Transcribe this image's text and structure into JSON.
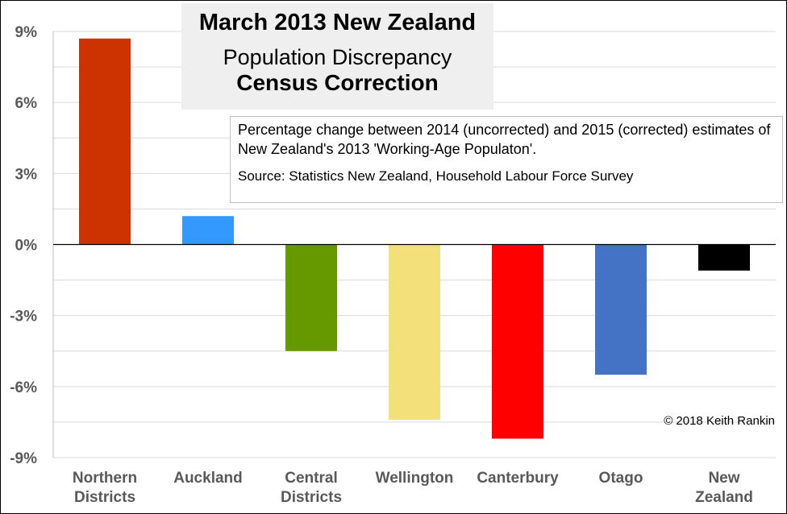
{
  "title": {
    "main": "March 2013 New Zealand",
    "line2": "Population Discrepancy",
    "line3": "Census Correction"
  },
  "note": {
    "text": "Percentage change between 2014 (uncorrected) and 2015 (corrected) estimates of New Zealand's 2013 'Working-Age Populaton'.",
    "source": "Source: Statistics New Zealand, Household Labour Force Survey"
  },
  "copyright": "© 2018 Keith Rankin",
  "chart_data": {
    "type": "bar",
    "categories": [
      "Northern Districts",
      "Auckland",
      "Central Districts",
      "Wellington",
      "Canterbury",
      "Otago",
      "New Zealand"
    ],
    "category_lines": [
      [
        "Northern",
        "Districts"
      ],
      [
        "Auckland"
      ],
      [
        "Central",
        "Districts"
      ],
      [
        "Wellington"
      ],
      [
        "Canterbury"
      ],
      [
        "Otago"
      ],
      [
        "New",
        "Zealand"
      ]
    ],
    "values": [
      8.7,
      1.2,
      -4.5,
      -7.4,
      -8.2,
      -5.5,
      -1.1
    ],
    "colors": [
      "#cc3300",
      "#3399ff",
      "#669900",
      "#f3e07a",
      "#ff0000",
      "#4472c4",
      "#000000"
    ],
    "ylim": [
      -9,
      9
    ],
    "yticks": [
      9,
      6,
      3,
      0,
      -3,
      -6,
      -9
    ],
    "ytick_labels": [
      "9%",
      "6%",
      "3%",
      "0%",
      "-3%",
      "-6%",
      "-9%"
    ],
    "minor_step": 1.5,
    "grid": true,
    "xlabel": "",
    "ylabel": ""
  }
}
